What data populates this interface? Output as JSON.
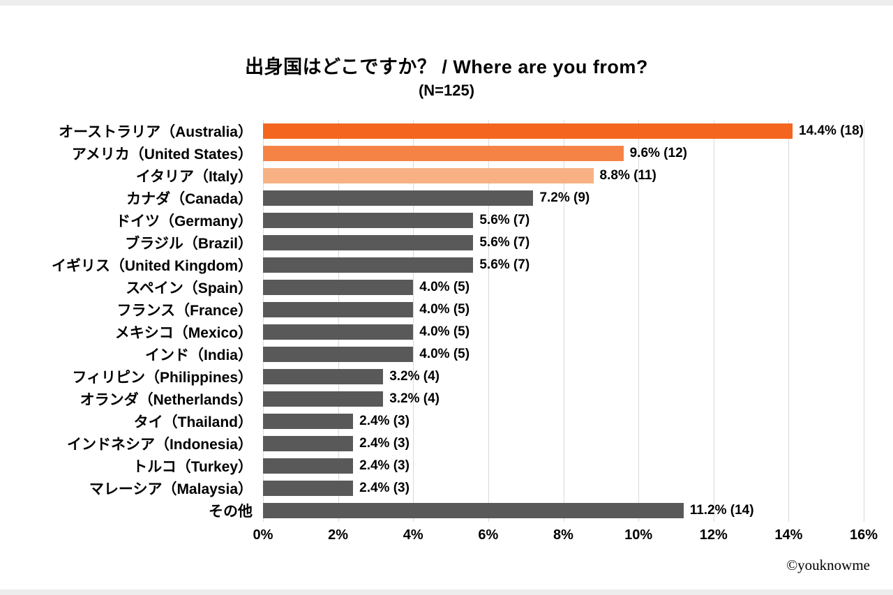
{
  "title": "出身国はどこですか？ / Where are you from?",
  "subtitle": "(N=125)",
  "credit": "©youknowme",
  "chart_data": {
    "type": "bar",
    "orientation": "horizontal",
    "title": "出身国はどこですか？ / Where are you from?",
    "subtitle": "(N=125)",
    "n_total": 125,
    "categories": [
      "オーストラリア（Australia）",
      "アメリカ（United States）",
      "イタリア（Italy）",
      "カナダ（Canada）",
      "ドイツ（Germany）",
      "ブラジル（Brazil）",
      "イギリス（United Kingdom）",
      "スペイン（Spain）",
      "フランス（France）",
      "メキシコ（Mexico）",
      "インド（India）",
      "フィリピン（Philippines）",
      "オランダ（Netherlands）",
      "タイ（Thailand）",
      "インドネシア（Indonesia）",
      "トルコ（Turkey）",
      "マレーシア（Malaysia）",
      "その他"
    ],
    "values": [
      14.4,
      9.6,
      8.8,
      7.2,
      5.6,
      5.6,
      5.6,
      4.0,
      4.0,
      4.0,
      4.0,
      3.2,
      3.2,
      2.4,
      2.4,
      2.4,
      2.4,
      11.2
    ],
    "counts": [
      18,
      12,
      11,
      9,
      7,
      7,
      7,
      5,
      5,
      5,
      5,
      4,
      4,
      3,
      3,
      3,
      3,
      14
    ],
    "data_labels": [
      "14.4% (18)",
      "9.6% (12)",
      "8.8% (11)",
      "7.2% (9)",
      "5.6% (7)",
      "5.6% (7)",
      "5.6% (7)",
      "4.0% (5)",
      "4.0% (5)",
      "4.0% (5)",
      "4.0% (5)",
      "3.2% (4)",
      "3.2% (4)",
      "2.4% (3)",
      "2.4% (3)",
      "2.4% (3)",
      "2.4% (3)",
      "11.2% (14)"
    ],
    "bar_colors": [
      "#f4661f",
      "#f58345",
      "#f7b183",
      "#595959",
      "#595959",
      "#595959",
      "#595959",
      "#595959",
      "#595959",
      "#595959",
      "#595959",
      "#595959",
      "#595959",
      "#595959",
      "#595959",
      "#595959",
      "#595959",
      "#595959"
    ],
    "xlim": [
      0,
      16
    ],
    "x_ticks": [
      "0%",
      "2%",
      "4%",
      "6%",
      "8%",
      "10%",
      "12%",
      "14%",
      "16%"
    ],
    "grid": true,
    "gridline_color": "#d9d9d9",
    "legend": "none"
  }
}
